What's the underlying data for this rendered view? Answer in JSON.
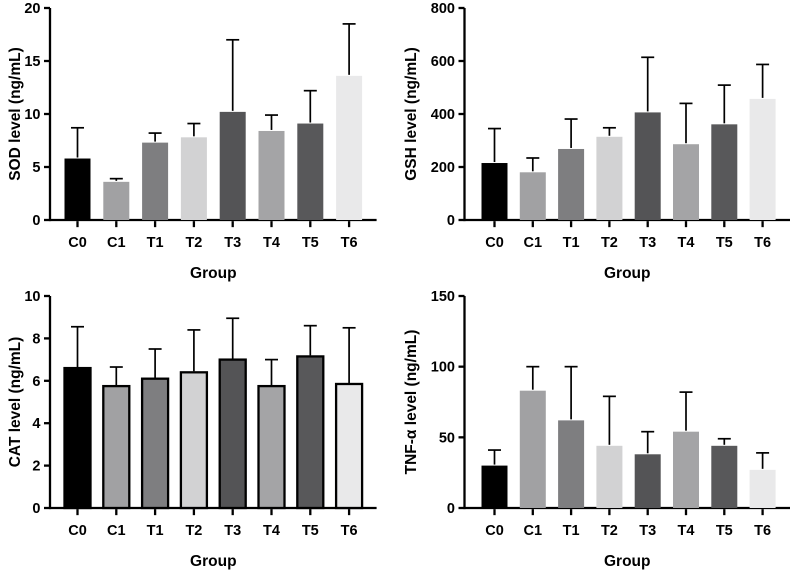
{
  "figure": {
    "description": "Four-panel grayscale bar chart figure with SD error bars",
    "background_color": "#ffffff",
    "axis_color": "#000000",
    "group_axis_label": "Group",
    "categories": [
      "C0",
      "C1",
      "T1",
      "T2",
      "T3",
      "T4",
      "T5",
      "T6"
    ],
    "bar_colors": [
      "#000000",
      "#a1a1a3",
      "#7e7e80",
      "#d2d2d3",
      "#545456",
      "#a4a4a6",
      "#58585a",
      "#e9e9ea"
    ]
  },
  "chart_data": [
    {
      "id": "sod",
      "type": "bar",
      "ylabel": "SOD level (ng/mL)",
      "xlabel": "Group",
      "categories": [
        "C0",
        "C1",
        "T1",
        "T2",
        "T3",
        "T4",
        "T5",
        "T6"
      ],
      "values": [
        5.8,
        3.6,
        7.3,
        7.8,
        10.2,
        8.4,
        9.1,
        13.6
      ],
      "errors_plus": [
        2.9,
        0.3,
        0.9,
        1.3,
        6.8,
        1.5,
        3.1,
        4.9
      ],
      "ylim": [
        0,
        20
      ],
      "yticks": [
        0,
        5,
        10,
        15,
        20
      ],
      "bar_outlined": false,
      "error_bars": "upper, capped",
      "grid": false,
      "legend": false
    },
    {
      "id": "gsh",
      "type": "bar",
      "ylabel": "GSH level (ng/mL)",
      "xlabel": "Group",
      "categories": [
        "C0",
        "C1",
        "T1",
        "T2",
        "T3",
        "T4",
        "T5",
        "T6"
      ],
      "values": [
        215,
        180,
        268,
        314,
        406,
        286,
        361,
        457
      ],
      "errors_plus": [
        130,
        54,
        113,
        34,
        208,
        154,
        148,
        130
      ],
      "ylim": [
        0,
        800
      ],
      "yticks": [
        0,
        200,
        400,
        600,
        800
      ],
      "bar_outlined": false,
      "error_bars": "upper, capped",
      "grid": false,
      "legend": false
    },
    {
      "id": "cat",
      "type": "bar",
      "ylabel": "CAT level (ng/mL)",
      "xlabel": "Group",
      "categories": [
        "C0",
        "C1",
        "T1",
        "T2",
        "T3",
        "T4",
        "T5",
        "T6"
      ],
      "values": [
        6.6,
        5.75,
        6.1,
        6.4,
        7.0,
        5.75,
        7.15,
        5.85
      ],
      "errors_plus": [
        1.95,
        0.9,
        1.4,
        2.0,
        1.95,
        1.25,
        1.45,
        2.65
      ],
      "ylim": [
        0,
        10
      ],
      "yticks": [
        0,
        2,
        4,
        6,
        8,
        10
      ],
      "bar_outlined": true,
      "error_bars": "upper, capped",
      "grid": false,
      "legend": false
    },
    {
      "id": "tnf",
      "type": "bar",
      "ylabel": "TNF-α level (ng/mL)",
      "xlabel": "Group",
      "categories": [
        "C0",
        "C1",
        "T1",
        "T2",
        "T3",
        "T4",
        "T5",
        "T6"
      ],
      "values": [
        30,
        83,
        62,
        44,
        38,
        54,
        44,
        27
      ],
      "errors_plus": [
        11,
        17,
        38,
        35,
        16,
        28,
        5,
        12
      ],
      "ylim": [
        0,
        150
      ],
      "yticks": [
        0,
        50,
        100,
        150
      ],
      "bar_outlined": false,
      "error_bars": "upper, capped",
      "grid": false,
      "legend": false
    }
  ]
}
